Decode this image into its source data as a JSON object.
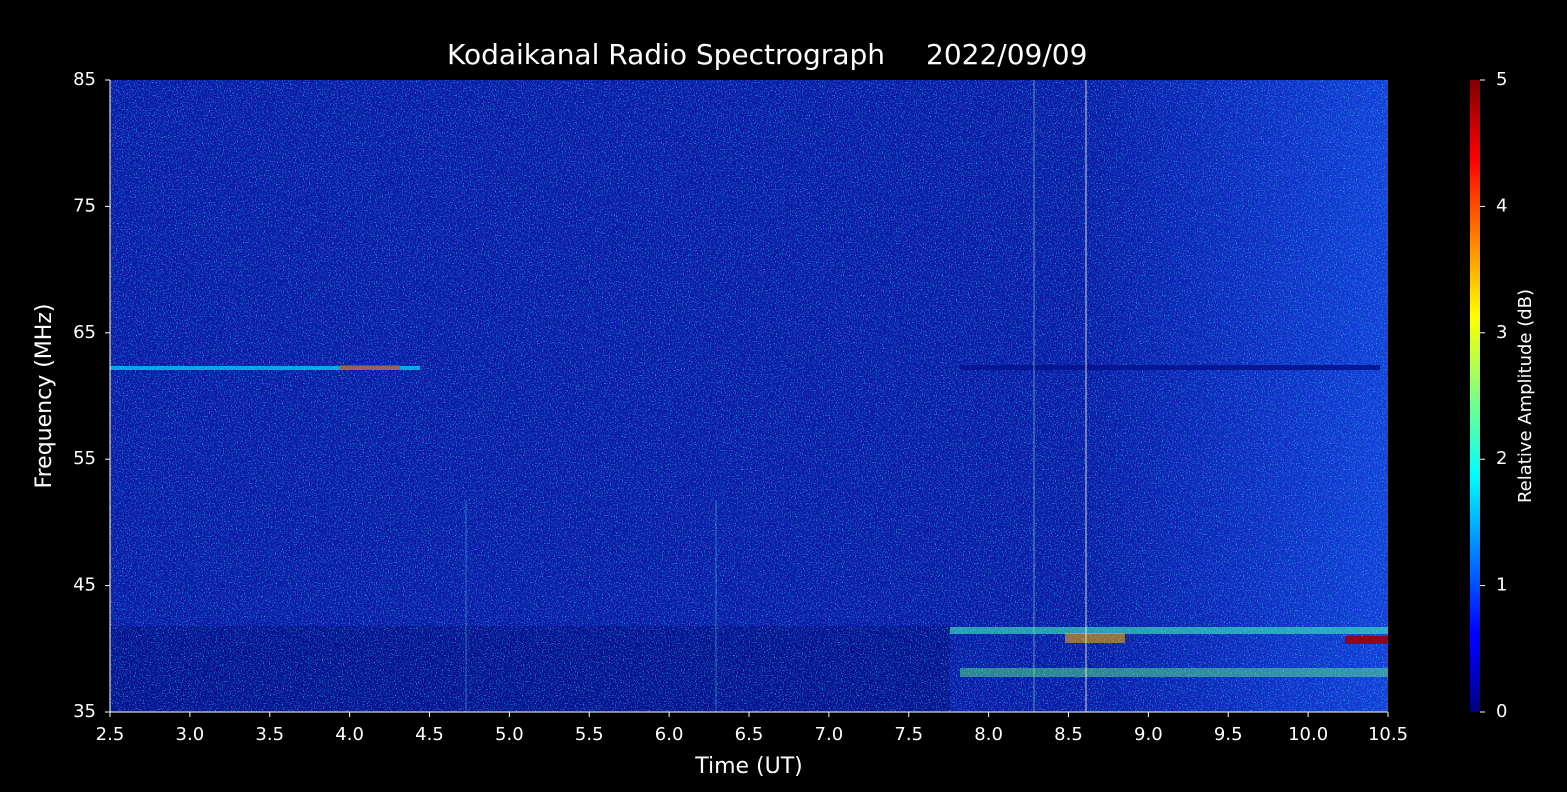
{
  "chart_data": {
    "type": "spectrogram",
    "title": "Kodaikanal Radio Spectrograph",
    "date": "2022/09/09",
    "x_label": "Time (UT)",
    "y_label": "Frequency (MHz)",
    "xlim": [
      2.5,
      10.5
    ],
    "xticks": [
      2.5,
      {
        "value": 3,
        "label": "3.0"
      },
      3.5,
      {
        "value": 4,
        "label": "4.0"
      },
      4.5,
      {
        "value": 5,
        "label": "5.0"
      },
      5.5,
      {
        "value": 6,
        "label": "6.0"
      },
      6.5,
      {
        "value": 7,
        "label": "7.0"
      },
      7.5,
      {
        "value": 8,
        "label": "8.0"
      },
      8.5,
      {
        "value": 9,
        "label": "9.0"
      },
      9.5,
      {
        "value": 10,
        "label": "10.0"
      },
      10.5
    ],
    "ylim": [
      35,
      85
    ],
    "yticks": [
      35,
      45,
      55,
      65,
      75,
      85
    ],
    "colorbar": {
      "label": "Relative Amplitude (dB)",
      "clim": [
        0,
        5
      ],
      "ticks": [
        0,
        1,
        2,
        3,
        4,
        5
      ],
      "colormap": "jet"
    }
  }
}
